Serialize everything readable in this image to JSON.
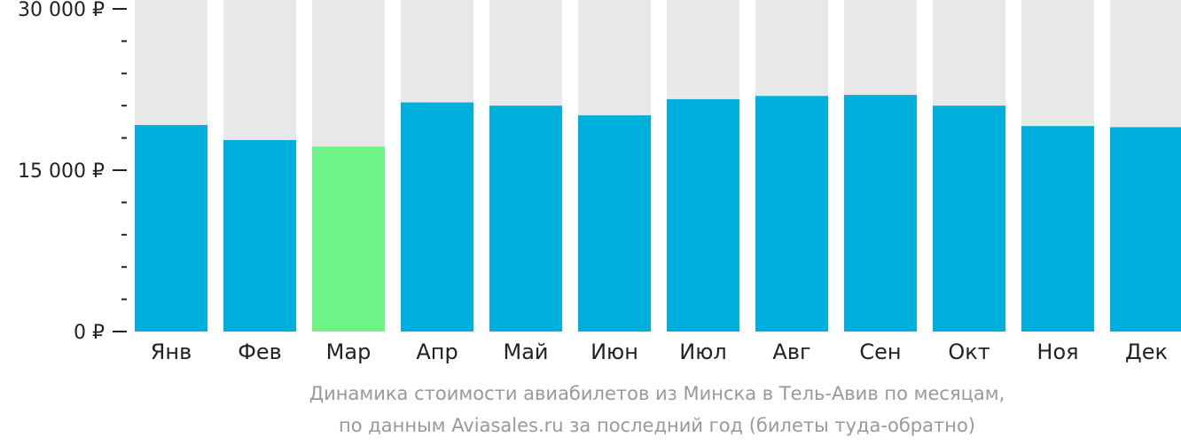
{
  "chart_data": {
    "type": "bar",
    "categories": [
      "Янв",
      "Фев",
      "Мар",
      "Апр",
      "Май",
      "Июн",
      "Июл",
      "Авг",
      "Сен",
      "Окт",
      "Ноя",
      "Дек"
    ],
    "values": [
      19200,
      17800,
      17200,
      21300,
      21000,
      20100,
      21600,
      21900,
      22000,
      21000,
      19100,
      19000
    ],
    "ylim": [
      0,
      30000
    ],
    "ytick_labels": [
      {
        "value": 0,
        "label": "0 ₽"
      },
      {
        "value": 15000,
        "label": "15 000 ₽"
      },
      {
        "value": 30000,
        "label": "30 000 ₽"
      }
    ],
    "minor_tick_step": 3000,
    "highlight_index": 2,
    "colors": {
      "bar": "#00b0dc",
      "highlight": "#6ef386",
      "background_bar": "#e8e8e8",
      "axis": "#222222"
    },
    "caption_line1": "Динамика стоимости авиабилетов из Минска в Тель-Авив по месяцам,",
    "caption_line2": "по данным Aviasales.ru за последний год (билеты туда-обратно)"
  }
}
